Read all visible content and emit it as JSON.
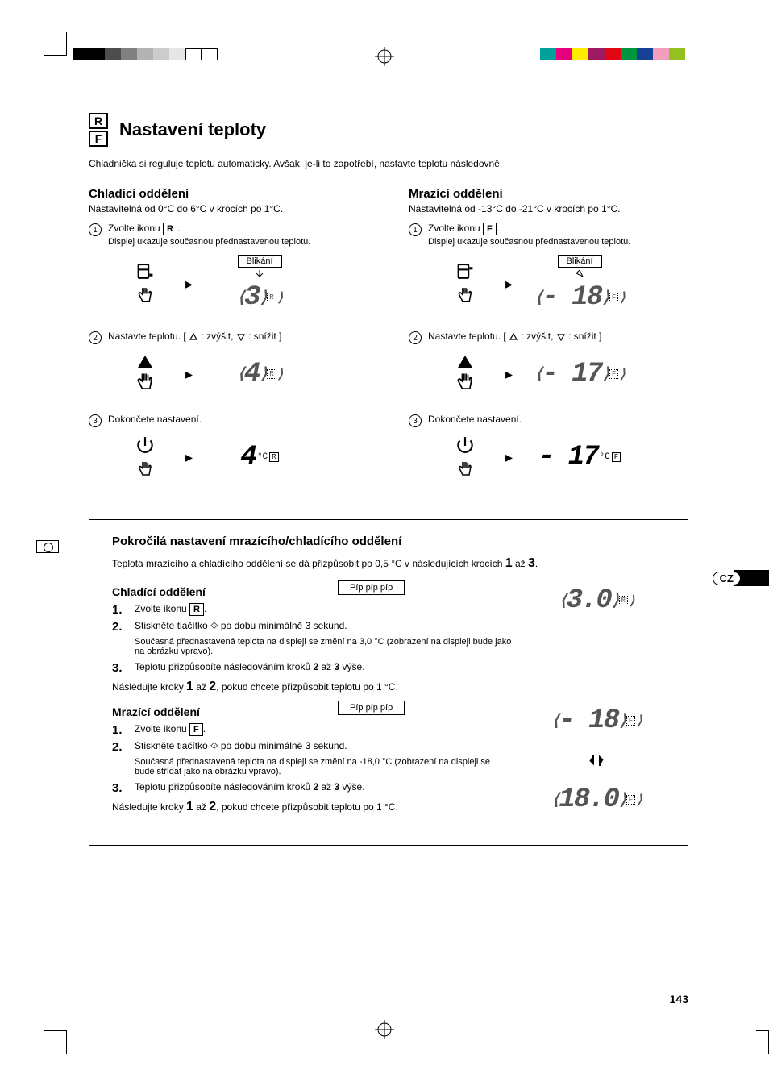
{
  "print_mark_colors_left": [
    "#000000",
    "#000000",
    "#4d4d4d",
    "#808080",
    "#b3b3b3",
    "#cccccc",
    "#e6e6e6",
    "#ffffff",
    "#ffffff"
  ],
  "print_mark_colors_right": [
    "#00a19a",
    "#e6007e",
    "#ffed00",
    "#9e1b64",
    "#e30613",
    "#009640",
    "#164194",
    "#f29ebe",
    "#94c11f"
  ],
  "lang_code": "CZ",
  "header": {
    "rf_top": "R",
    "rf_bottom": "F",
    "title": "Nastavení teploty",
    "intro": "Chladnička si reguluje teplotu automaticky. Avšak, je-li to zapotřebí, nastavte teplotu následovně."
  },
  "cooling": {
    "heading": "Chladící oddělení",
    "range": "Nastavitelná od 0°C do 6°C v krocích po 1°C.",
    "step1_a": "Zvolte ikonu ",
    "step1_letter": "R",
    "step1_sub": "Displej ukazuje současnou přednastavenou teplotu.",
    "blink": "Blikání",
    "display1_value": "3",
    "display1_ind": "R",
    "step2": "Nastavte teplotu. [ △ : zvýšit, ▽ : snížit ]",
    "display2_value": "4",
    "display2_ind": "R",
    "step3": "Dokončete nastavení.",
    "display3_value": "4",
    "display3_ind": "R",
    "display3_unit": "°C"
  },
  "freezing": {
    "heading": "Mrazící oddělení",
    "range": "Nastavitelná od -13°C do -21°C v krocích po 1°C.",
    "step1_a": "Zvolte ikonu ",
    "step1_letter": "F",
    "step1_sub": "Displej ukazuje současnou přednastavenou teplotu.",
    "blink": "Blikání",
    "display1_value": "- 18",
    "display1_ind": "F",
    "step2": "Nastavte teplotu. [ △ : zvýšit, ▽ : snížit ]",
    "display2_value": "- 17",
    "display2_ind": "F",
    "step3": "Dokončete nastavení.",
    "display3_value": "- 17",
    "display3_ind": "F",
    "display3_unit": "°C"
  },
  "advanced": {
    "heading": "Pokročilá nastavení mrazícího/chladícího oddělení",
    "para_a": "Teplota mrazícího a chladícího oddělení se dá přizpůsobit po 0,5 °C v následujících krocích ",
    "para_b": " až ",
    "para_c": ".",
    "cooling_heading": "Chladící oddělení",
    "beep": "Píp píp píp",
    "c_step1_a": "Zvolte ikonu ",
    "c_step1_letter": "R",
    "c_step2": "Stiskněte tlačítko ⟐ po dobu minimálně 3 sekund.",
    "c_step2_sub": "Současná přednastavená teplota na displeji se změní na 3,0 °C (zobrazení na displeji bude jako na obrázku vpravo).",
    "c_step3_a": "Teplotu přizpůsobíte následováním kroků ",
    "c_step3_b": " až ",
    "c_step3_c": " výše.",
    "follow": "Následujte kroky ",
    "follow_to": " až ",
    "follow_end": ", pokud chcete přizpůsobit teplotu po 1 °C.",
    "c_display": "3.0",
    "c_display_ind": "R",
    "freezing_heading": "Mrazící oddělení",
    "f_step1_letter": "F",
    "f_step2": "Stiskněte tlačítko ⟐ po dobu minimálně 3 sekund.",
    "f_step2_sub": "Současná přednastavená teplota na displeji se změní na -18,0 °C (zobrazení na displeji se bude střídat jako na obrázku vpravo).",
    "f_display1": "- 18",
    "f_display1_ind": "F",
    "f_display2": "18.0",
    "f_display2_ind": "F"
  },
  "page_number": "143"
}
